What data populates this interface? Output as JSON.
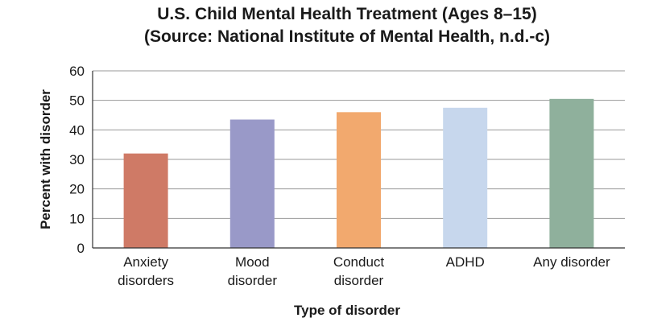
{
  "chart_data": {
    "type": "bar",
    "title": "U.S. Child Mental Health Treatment (Ages 8–15)",
    "subtitle": "(Source: National Institute of Mental Health, n.d.-c)",
    "xlabel": "Type of disorder",
    "ylabel": "Percent with disorder",
    "categories": [
      [
        "Anxiety",
        "disorders"
      ],
      [
        "Mood",
        "disorder"
      ],
      [
        "Conduct",
        "disorder"
      ],
      [
        "ADHD"
      ],
      [
        "Any disorder"
      ]
    ],
    "values": [
      32,
      43.5,
      46,
      47.5,
      50.5
    ],
    "colors": [
      "#cf7a66",
      "#9999c8",
      "#f2a96e",
      "#c7d7ed",
      "#8fb09c"
    ],
    "ylim": [
      0,
      60
    ],
    "yticks": [
      0,
      10,
      20,
      30,
      40,
      50,
      60
    ],
    "grid": true,
    "legend": "none"
  }
}
